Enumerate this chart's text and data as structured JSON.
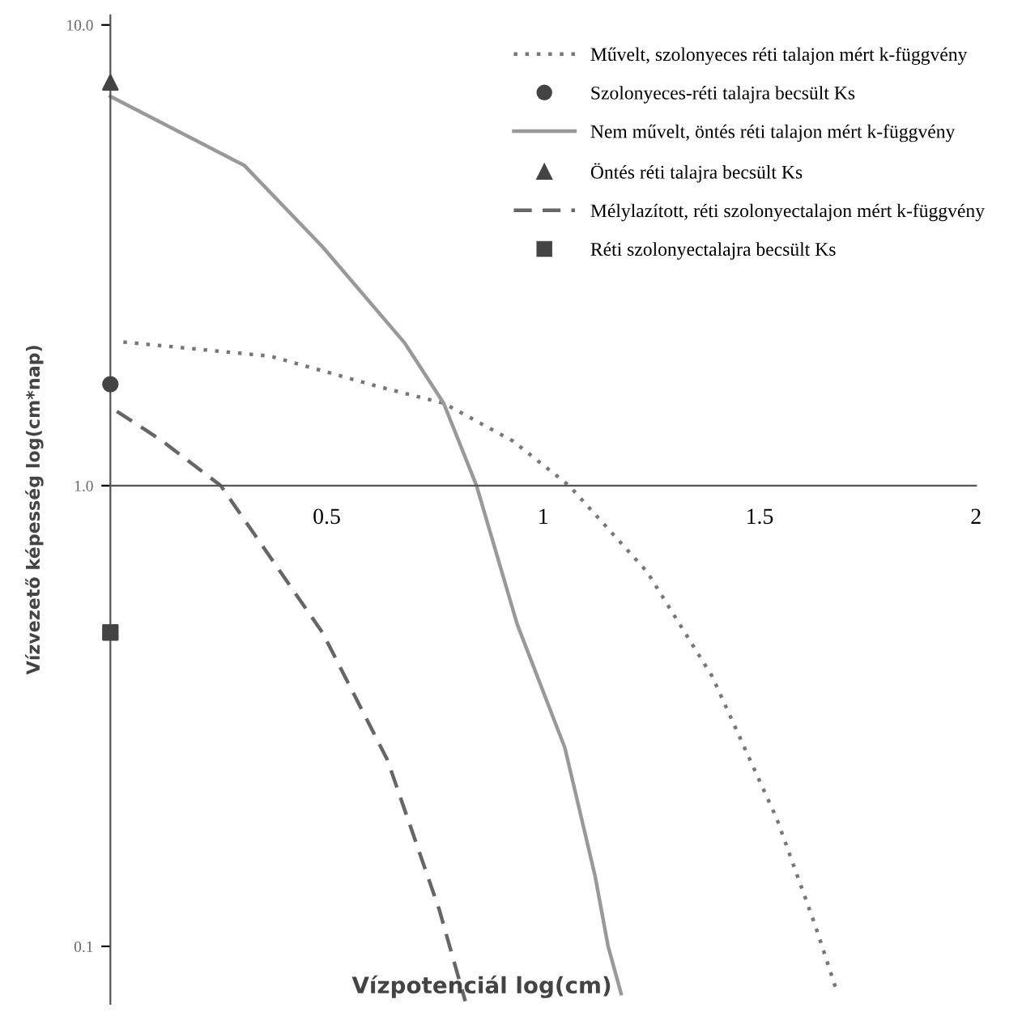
{
  "chart_data": {
    "type": "line",
    "xlabel": "Vízpotenciál log(cm)",
    "ylabel": "Vízvezető képesség log(cm*nap)",
    "log": "y",
    "xlim": [
      0,
      2
    ],
    "ylim": [
      0.075,
      10.5
    ],
    "xticks": [
      {
        "value": 0.5,
        "label": "0.5"
      },
      1,
      1.5,
      2
    ],
    "yticks": [
      {
        "value": 0.1,
        "label": "0.1"
      },
      {
        "value": 1,
        "label": "1.0"
      },
      {
        "value": 10,
        "label": "10.0"
      }
    ],
    "grid": false,
    "legend": "top right",
    "series": [
      {
        "name": "Művelt, szolonyeces réti talajon mért k-függvény",
        "line_style": "dotted",
        "marker": "none",
        "color": "#777777",
        "x": [
          0.03,
          0.37,
          0.62,
          0.77,
          0.93,
          1.06,
          1.24,
          1.39,
          1.54,
          1.63,
          1.68
        ],
        "values": [
          2.05,
          1.91,
          1.64,
          1.51,
          1.25,
          1.0,
          0.65,
          0.386,
          0.189,
          0.11,
          0.079
        ]
      },
      {
        "name": "Szolonyeces-réti talajra becsült Ks",
        "type": "scatter",
        "marker": "circle",
        "color": "#444444",
        "x": [
          0
        ],
        "values": [
          1.66
        ]
      },
      {
        "name": "Nem művelt, öntés réti talajon mért k-függvény",
        "line_style": "solid",
        "marker": "none",
        "color": "#999999",
        "x": [
          0,
          0.31,
          0.49,
          0.68,
          0.77,
          0.846,
          0.94,
          1.05,
          1.12,
          1.15,
          1.18
        ],
        "values": [
          7.0,
          4.95,
          3.3,
          2.04,
          1.51,
          1.0,
          0.5,
          0.27,
          0.142,
          0.1,
          0.079
        ]
      },
      {
        "name": "Öntés réti talajra becsült Ks",
        "type": "scatter",
        "marker": "triangle",
        "color": "#444444",
        "x": [
          0
        ],
        "values": [
          7.5
        ]
      },
      {
        "name": "Mélylazított, réti szolonyectalajon mért k-függvény",
        "line_style": "dashed",
        "marker": "none",
        "color": "#666666",
        "x": [
          0.015,
          0.12,
          0.255,
          0.49,
          0.64,
          0.76,
          0.82
        ],
        "values": [
          1.45,
          1.25,
          1.0,
          0.48,
          0.254,
          0.12,
          0.076
        ]
      },
      {
        "name": "Réti szolonyectalajra becsült Ks",
        "type": "scatter",
        "marker": "square",
        "color": "#444444",
        "x": [
          0
        ],
        "values": [
          0.48
        ]
      }
    ]
  }
}
